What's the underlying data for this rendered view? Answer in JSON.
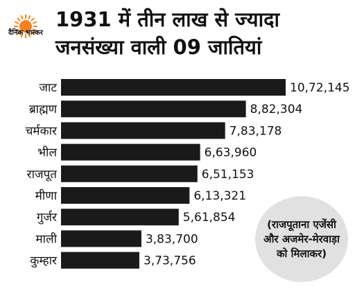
{
  "brand": {
    "logo_text": "दैनिक भास्कर",
    "accent_color": "#f58220"
  },
  "chart_data": {
    "type": "bar",
    "orientation": "horizontal",
    "title": "1931 में तीन लाख से ज्यादा जनसंख्या वाली 09 जातियां",
    "categories": [
      "जाट",
      "ब्राह्मण",
      "चर्मकार",
      "भील",
      "राजपूत",
      "मीणा",
      "गुर्जर",
      "माली",
      "कुम्हार"
    ],
    "values": [
      1072145,
      882304,
      783178,
      663960,
      651153,
      613321,
      561854,
      383700,
      373756
    ],
    "value_labels": [
      "10,72,145",
      "8,82,304",
      "7,83,178",
      "6,63,960",
      "6,51,153",
      "6,13,321",
      "5,61,854",
      "3,83,700",
      "3,73,756"
    ],
    "bar_color": "#1a1a1a",
    "xlim": [
      0,
      1072145
    ],
    "grid": false,
    "legend": "none"
  },
  "note": "(राजपूताना एजेंसी और अजमेर-मेरवाड़ा को मिलाकर)"
}
